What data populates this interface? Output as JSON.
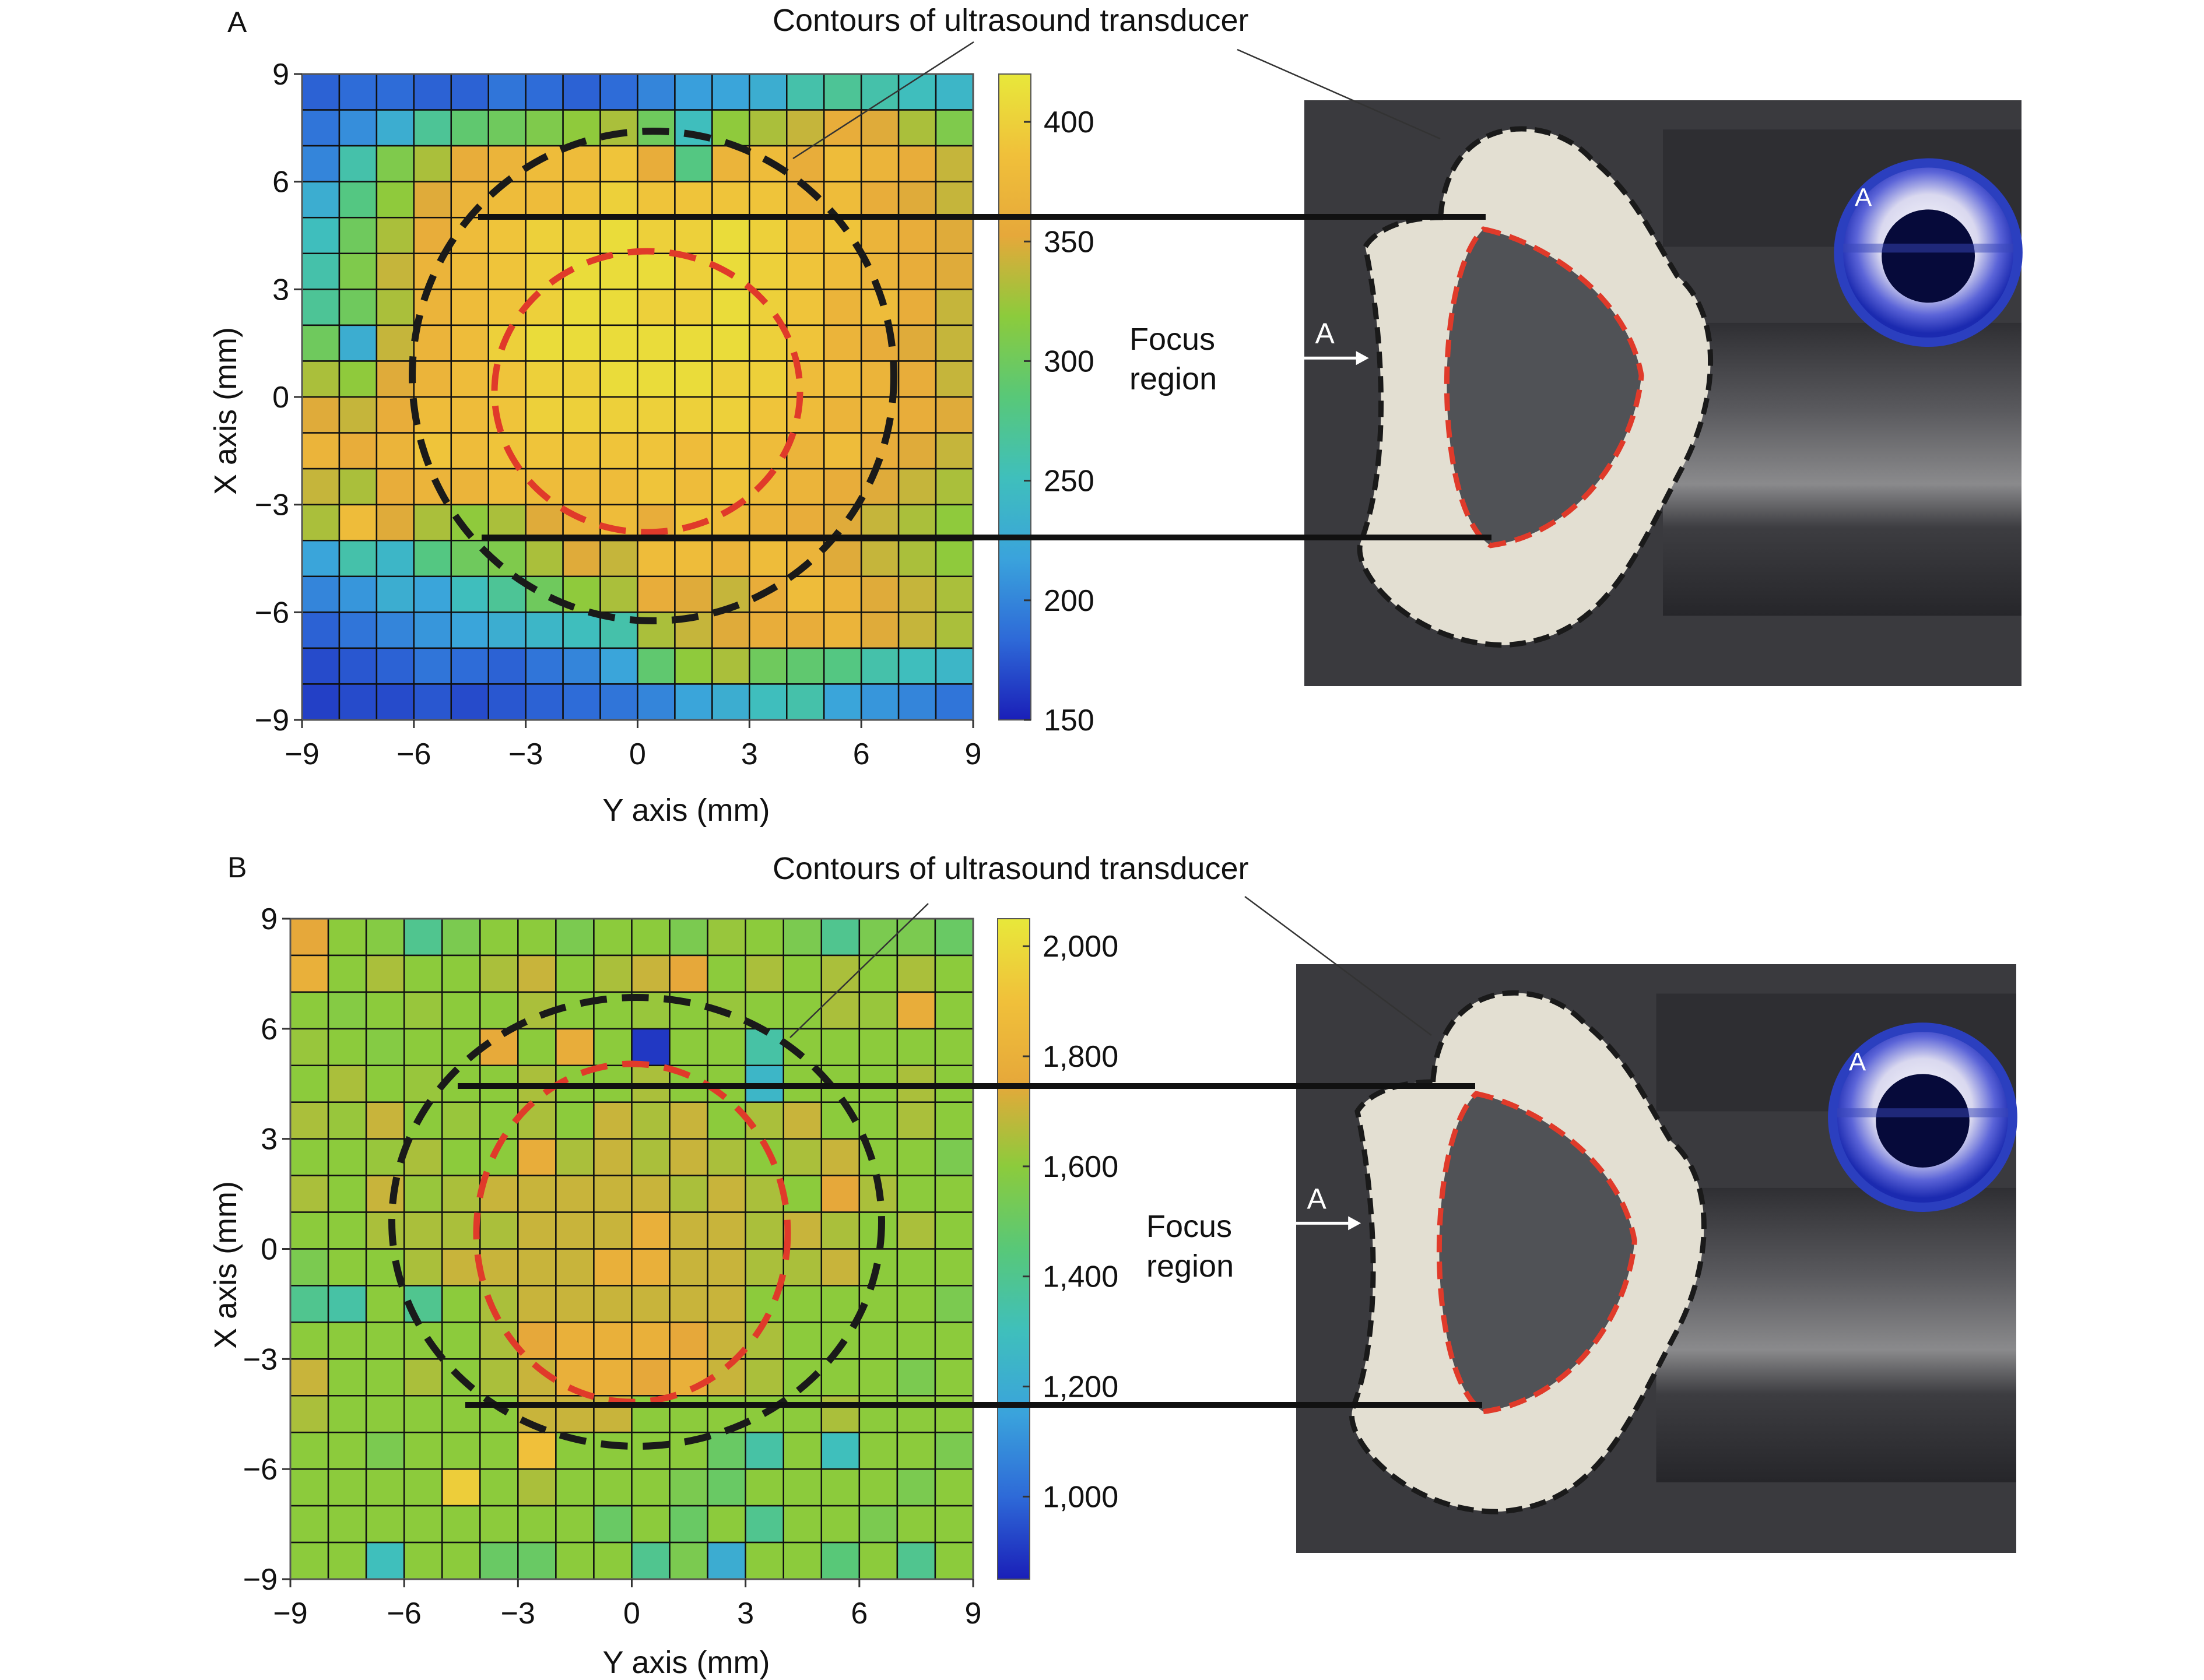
{
  "chart_data": [
    {
      "panel": "A",
      "type": "heatmap",
      "xlabel": "Y axis (mm)",
      "ylabel": "X axis (mm)",
      "x_ticks": [
        -9,
        -6,
        -3,
        0,
        3,
        6,
        9
      ],
      "y_ticks": [
        -9,
        -6,
        -3,
        0,
        3,
        6,
        9
      ],
      "x_tick_labels": [
        "−9",
        "−6",
        "−3",
        "0",
        "3",
        "6",
        "9"
      ],
      "y_tick_labels": [
        "−9",
        "−6",
        "−3",
        "0",
        "3",
        "6",
        "9"
      ],
      "xlim": [
        -9,
        9
      ],
      "ylim": [
        -9,
        9
      ],
      "grid_size": 18,
      "colorbar": {
        "range": [
          150,
          420
        ],
        "ticks": [
          150,
          200,
          250,
          300,
          350,
          400
        ],
        "tick_labels": [
          "150",
          "200",
          "250",
          "300",
          "350",
          "400"
        ]
      },
      "annotations": {
        "contour_label": "Contours of ultrasound transducer",
        "focus_label_1": "Focus",
        "focus_label_2": "region",
        "arrow_label": "A",
        "inset_label": "A"
      },
      "rows_top_to_bottom": [
        [
          180,
          185,
          185,
          180,
          180,
          190,
          185,
          180,
          185,
          200,
          215,
          220,
          230,
          260,
          270,
          260,
          250,
          240
        ],
        [
          190,
          205,
          230,
          270,
          290,
          300,
          310,
          320,
          330,
          300,
          250,
          320,
          330,
          340,
          360,
          350,
          330,
          310
        ],
        [
          200,
          260,
          310,
          330,
          360,
          370,
          380,
          380,
          390,
          360,
          280,
          370,
          380,
          360,
          380,
          370,
          360,
          340
        ],
        [
          230,
          280,
          320,
          350,
          370,
          380,
          380,
          390,
          400,
          390,
          390,
          390,
          390,
          370,
          380,
          360,
          350,
          340
        ],
        [
          250,
          300,
          330,
          360,
          380,
          390,
          400,
          400,
          410,
          400,
          400,
          410,
          400,
          380,
          390,
          370,
          360,
          350
        ],
        [
          260,
          310,
          340,
          370,
          380,
          390,
          400,
          410,
          410,
          410,
          400,
          410,
          400,
          390,
          380,
          370,
          360,
          350
        ],
        [
          270,
          300,
          330,
          370,
          380,
          390,
          400,
          410,
          410,
          400,
          400,
          410,
          400,
          390,
          370,
          380,
          360,
          340
        ],
        [
          300,
          230,
          340,
          370,
          380,
          400,
          410,
          410,
          410,
          410,
          410,
          410,
          400,
          390,
          370,
          360,
          350,
          340
        ],
        [
          330,
          320,
          350,
          370,
          380,
          390,
          400,
          400,
          410,
          410,
          410,
          400,
          400,
          380,
          380,
          370,
          360,
          340
        ],
        [
          350,
          340,
          360,
          380,
          380,
          390,
          400,
          400,
          400,
          400,
          400,
          400,
          390,
          380,
          370,
          370,
          360,
          350
        ],
        [
          370,
          360,
          370,
          390,
          380,
          390,
          390,
          390,
          390,
          390,
          380,
          390,
          380,
          370,
          380,
          360,
          350,
          340
        ],
        [
          340,
          330,
          360,
          370,
          370,
          380,
          380,
          380,
          380,
          390,
          380,
          390,
          380,
          370,
          360,
          350,
          340,
          330
        ],
        [
          330,
          380,
          350,
          330,
          320,
          330,
          350,
          370,
          380,
          360,
          390,
          380,
          370,
          360,
          350,
          340,
          330,
          320
        ],
        [
          220,
          260,
          240,
          280,
          300,
          310,
          330,
          350,
          340,
          380,
          380,
          370,
          380,
          370,
          350,
          340,
          330,
          320
        ],
        [
          200,
          210,
          230,
          220,
          250,
          270,
          300,
          320,
          330,
          360,
          350,
          340,
          360,
          380,
          370,
          350,
          340,
          330
        ],
        [
          180,
          190,
          200,
          210,
          220,
          230,
          240,
          250,
          260,
          330,
          340,
          350,
          360,
          360,
          370,
          350,
          340,
          330
        ],
        [
          170,
          175,
          180,
          190,
          185,
          180,
          190,
          200,
          220,
          290,
          320,
          330,
          300,
          290,
          280,
          260,
          250,
          240
        ],
        [
          165,
          170,
          170,
          175,
          170,
          175,
          180,
          185,
          190,
          200,
          220,
          230,
          250,
          260,
          220,
          210,
          200,
          190
        ]
      ]
    },
    {
      "panel": "B",
      "type": "heatmap",
      "xlabel": "Y axis (mm)",
      "ylabel": "X axis (mm)",
      "x_ticks": [
        -9,
        -6,
        -3,
        0,
        3,
        6,
        9
      ],
      "y_ticks": [
        -9,
        -6,
        -3,
        0,
        3,
        6,
        9
      ],
      "x_tick_labels": [
        "−9",
        "−6",
        "−3",
        "0",
        "3",
        "6",
        "9"
      ],
      "y_tick_labels": [
        "−9",
        "−6",
        "−3",
        "0",
        "3",
        "6",
        "9"
      ],
      "xlim": [
        -9,
        9
      ],
      "ylim": [
        -9,
        9
      ],
      "grid_size": 18,
      "colorbar": {
        "range": [
          850,
          2050
        ],
        "ticks": [
          1000,
          1200,
          1400,
          1600,
          1800,
          2000
        ],
        "tick_labels": [
          "1,000",
          "1,200",
          "1,400",
          "1,600",
          "1,800",
          "2,000"
        ]
      },
      "annotations": {
        "contour_label": "Contours of ultrasound transducer",
        "focus_label_1": "Focus",
        "focus_label_2": "region",
        "arrow_label": "A",
        "inset_label": "A"
      },
      "rows_top_to_bottom": [
        [
          1750,
          1600,
          1580,
          1400,
          1550,
          1600,
          1600,
          1550,
          1600,
          1600,
          1550,
          1620,
          1600,
          1550,
          1400,
          1550,
          1550,
          1500
        ],
        [
          1800,
          1600,
          1650,
          1600,
          1600,
          1650,
          1700,
          1600,
          1650,
          1700,
          1750,
          1600,
          1650,
          1600,
          1650,
          1600,
          1650,
          1600
        ],
        [
          1600,
          1580,
          1600,
          1620,
          1600,
          1600,
          1650,
          1600,
          1600,
          1620,
          1600,
          1620,
          1600,
          1600,
          1650,
          1620,
          1780,
          1600
        ],
        [
          1620,
          1600,
          1580,
          1600,
          1600,
          1760,
          1600,
          1780,
          1600,
          900,
          1600,
          1600,
          1350,
          1600,
          1600,
          1600,
          1600,
          1600
        ],
        [
          1600,
          1650,
          1600,
          1620,
          1600,
          1600,
          1650,
          1600,
          1600,
          1650,
          1600,
          1600,
          1250,
          1600,
          1600,
          1600,
          1650,
          1600
        ],
        [
          1650,
          1620,
          1700,
          1600,
          1620,
          1600,
          1650,
          1600,
          1700,
          1650,
          1700,
          1600,
          1650,
          1700,
          1600,
          1600,
          1650,
          1600
        ],
        [
          1600,
          1600,
          1620,
          1650,
          1600,
          1600,
          1780,
          1650,
          1700,
          1650,
          1700,
          1650,
          1600,
          1650,
          1700,
          1600,
          1600,
          1550
        ],
        [
          1650,
          1600,
          1700,
          1620,
          1650,
          1700,
          1700,
          1700,
          1700,
          1700,
          1650,
          1700,
          1650,
          1600,
          1750,
          1650,
          1600,
          1600
        ],
        [
          1600,
          1600,
          1650,
          1650,
          1650,
          1650,
          1700,
          1700,
          1700,
          1800,
          1700,
          1700,
          1650,
          1700,
          1650,
          1600,
          1650,
          1600
        ],
        [
          1550,
          1600,
          1600,
          1650,
          1700,
          1700,
          1700,
          1700,
          1800,
          1800,
          1700,
          1700,
          1650,
          1650,
          1700,
          1600,
          1600,
          1600
        ],
        [
          1400,
          1350,
          1600,
          1400,
          1600,
          1650,
          1700,
          1700,
          1700,
          1700,
          1700,
          1700,
          1600,
          1600,
          1600,
          1600,
          1600,
          1550
        ],
        [
          1600,
          1600,
          1600,
          1600,
          1600,
          1650,
          1750,
          1800,
          1800,
          1800,
          1750,
          1700,
          1650,
          1600,
          1600,
          1600,
          1600,
          1600
        ],
        [
          1700,
          1600,
          1600,
          1650,
          1600,
          1650,
          1700,
          1800,
          1800,
          1750,
          1800,
          1700,
          1650,
          1600,
          1600,
          1600,
          1550,
          1600
        ],
        [
          1650,
          1600,
          1600,
          1600,
          1600,
          1600,
          1700,
          1700,
          1700,
          1600,
          1600,
          1600,
          1600,
          1600,
          1650,
          1600,
          1600,
          1600
        ],
        [
          1600,
          1600,
          1550,
          1600,
          1600,
          1600,
          1900,
          1600,
          1600,
          1600,
          1600,
          1500,
          1350,
          1600,
          1300,
          1600,
          1600,
          1550
        ],
        [
          1600,
          1600,
          1600,
          1600,
          1950,
          1600,
          1650,
          1600,
          1600,
          1600,
          1550,
          1500,
          1600,
          1600,
          1600,
          1600,
          1550,
          1600
        ],
        [
          1600,
          1600,
          1600,
          1600,
          1600,
          1600,
          1600,
          1600,
          1500,
          1600,
          1500,
          1600,
          1400,
          1600,
          1600,
          1550,
          1600,
          1600
        ],
        [
          1600,
          1600,
          1300,
          1600,
          1600,
          1500,
          1500,
          1600,
          1600,
          1400,
          1550,
          1200,
          1600,
          1600,
          1450,
          1600,
          1400,
          1600
        ]
      ]
    }
  ],
  "colors": {
    "gridline": "#111111",
    "outer_contour": "#1a1a1a",
    "inner_contour": "#e03a2a",
    "photo_background": "#3a3a3e",
    "photo_face": "#e3dfd2",
    "photo_hole": "#505256",
    "inset_ring": "#2b3fbf"
  },
  "colormap": [
    "#1a1fb8",
    "#2e6ad8",
    "#3aa3dc",
    "#3fbfbc",
    "#58c878",
    "#8ccb3c",
    "#e6a83a",
    "#f0c03a",
    "#e8e83a"
  ]
}
